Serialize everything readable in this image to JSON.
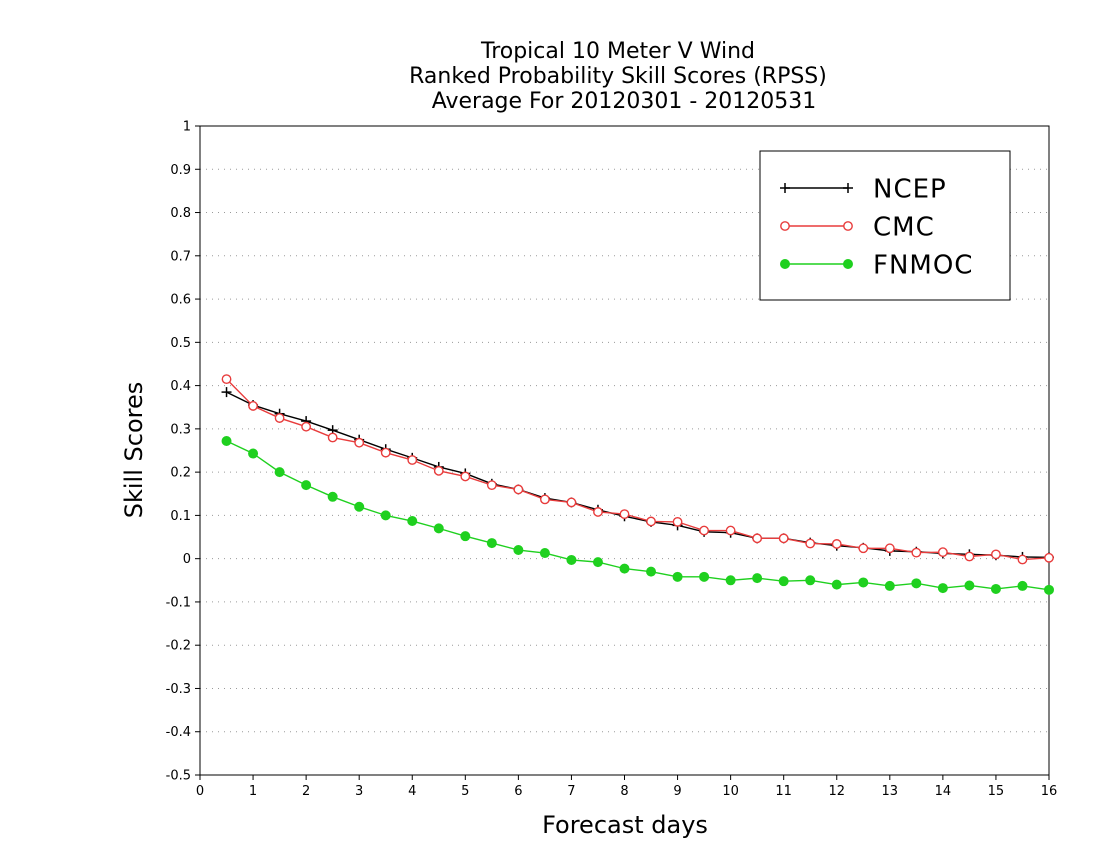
{
  "chart_data": {
    "type": "line",
    "title_lines": [
      "Tropical 10 Meter V Wind",
      "Ranked Probability Skill Scores (RPSS)",
      "Average For 20120301 - 20120531"
    ],
    "xlabel": "Forecast days",
    "ylabel": "Skill Scores",
    "xlim": [
      0,
      16
    ],
    "ylim": [
      -0.5,
      1
    ],
    "x_ticks": [
      "0",
      "1",
      "2",
      "3",
      "4",
      "5",
      "6",
      "7",
      "8",
      "9",
      "10",
      "11",
      "12",
      "13",
      "14",
      "15",
      "16"
    ],
    "y_ticks": [
      "1",
      "0.9",
      "0.8",
      "0.7",
      "0.6",
      "0.5",
      "0.4",
      "0.3",
      "0.2",
      "0.1",
      "0",
      "-0.1",
      "-0.2",
      "-0.3",
      "-0.4",
      "-0.5"
    ],
    "grid": "horizontal dotted",
    "legend_position": "top-right",
    "x": [
      0.5,
      1,
      1.5,
      2,
      2.5,
      3,
      3.5,
      4,
      4.5,
      5,
      5.5,
      6,
      6.5,
      7,
      7.5,
      8,
      8.5,
      9,
      9.5,
      10,
      10.5,
      11,
      11.5,
      12,
      12.5,
      13,
      13.5,
      14,
      14.5,
      15,
      15.5,
      16
    ],
    "series": [
      {
        "name": "NCEP",
        "color": "#000000",
        "marker": "plus",
        "values": [
          0.385,
          0.355,
          0.335,
          0.318,
          0.297,
          0.275,
          0.253,
          0.233,
          0.212,
          0.197,
          0.173,
          0.16,
          0.14,
          0.13,
          0.113,
          0.098,
          0.085,
          0.077,
          0.062,
          0.06,
          0.047,
          0.047,
          0.037,
          0.03,
          0.025,
          0.018,
          0.016,
          0.012,
          0.01,
          0.008,
          0.004,
          0.003
        ]
      },
      {
        "name": "CMC",
        "color": "#e83c3c",
        "marker": "circle-open",
        "values": [
          0.415,
          0.353,
          0.325,
          0.305,
          0.28,
          0.268,
          0.245,
          0.228,
          0.203,
          0.19,
          0.17,
          0.16,
          0.137,
          0.13,
          0.108,
          0.103,
          0.086,
          0.085,
          0.065,
          0.065,
          0.047,
          0.047,
          0.035,
          0.034,
          0.024,
          0.024,
          0.014,
          0.015,
          0.005,
          0.01,
          -0.002,
          0.002
        ]
      },
      {
        "name": "FNMOC",
        "color": "#1fd01f",
        "marker": "circle-filled",
        "values": [
          0.272,
          0.243,
          0.2,
          0.17,
          0.143,
          0.12,
          0.1,
          0.087,
          0.07,
          0.052,
          0.036,
          0.02,
          0.013,
          -0.003,
          -0.008,
          -0.023,
          -0.03,
          -0.042,
          -0.042,
          -0.05,
          -0.045,
          -0.052,
          -0.05,
          -0.06,
          -0.055,
          -0.063,
          -0.057,
          -0.068,
          -0.062,
          -0.07,
          -0.063,
          -0.072
        ]
      }
    ]
  }
}
